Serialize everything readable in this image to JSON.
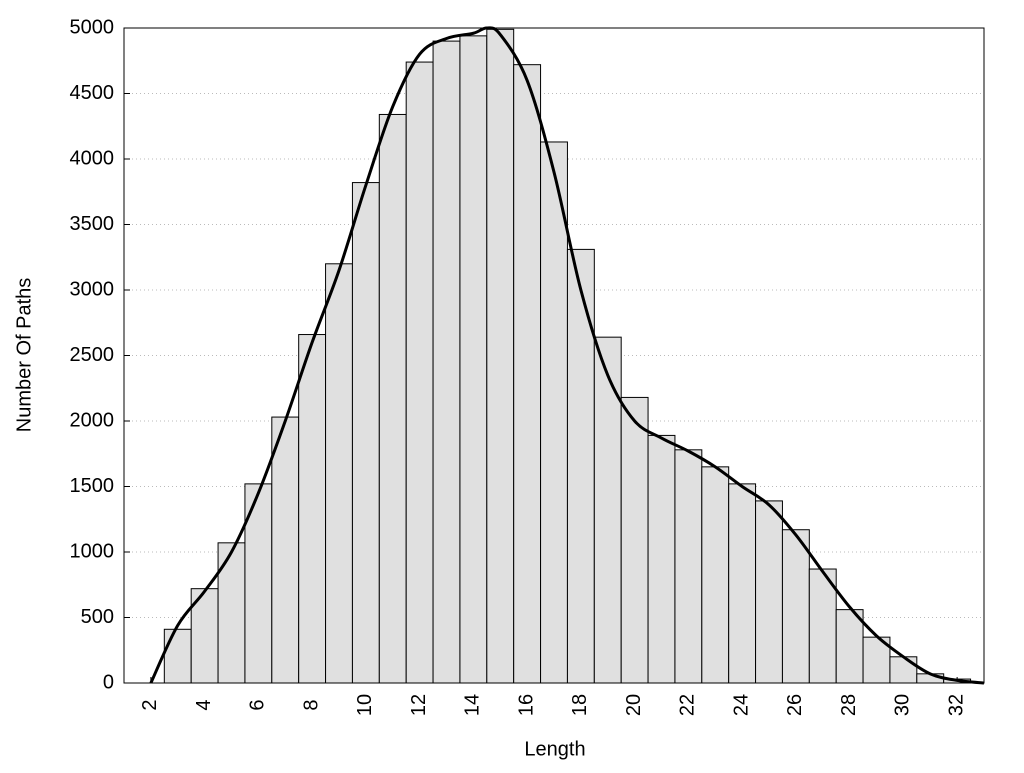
{
  "chart_data": {
    "type": "histogram",
    "xlabel": "Length",
    "ylabel": "Number Of Paths",
    "bins": [
      2.5,
      3.5,
      4.5,
      5.5,
      6.5,
      7.5,
      8.5,
      9.5,
      10.5,
      11.5,
      12.5,
      13.5,
      14.5,
      15.5,
      16.5,
      17.5,
      18.5,
      19.5,
      20.5,
      21.5,
      22.5,
      23.5,
      24.5,
      25.5,
      26.5,
      27.5,
      28.5,
      29.5,
      30.5,
      31.5,
      32.5
    ],
    "counts": [
      410,
      720,
      1070,
      1520,
      2030,
      2660,
      3200,
      3820,
      4340,
      4740,
      4900,
      4940,
      4990,
      4720,
      4130,
      3310,
      2640,
      2180,
      1890,
      1780,
      1650,
      1520,
      1390,
      1170,
      870,
      560,
      350,
      200,
      70,
      30
    ],
    "bar_color": "#e0e0e0",
    "curve": {
      "color": "#000000",
      "x": [
        2,
        3,
        4,
        5,
        6,
        7,
        8,
        9,
        10,
        11,
        12,
        13,
        14,
        14.5,
        15,
        16,
        17,
        18,
        19,
        20,
        21,
        22,
        23,
        24,
        25,
        26,
        27,
        28,
        29,
        30,
        31,
        32,
        33
      ],
      "values": [
        0,
        440,
        700,
        1000,
        1450,
        2000,
        2600,
        3150,
        3800,
        4400,
        4800,
        4920,
        4960,
        5000,
        4950,
        4600,
        3900,
        3000,
        2350,
        2000,
        1870,
        1770,
        1650,
        1500,
        1360,
        1130,
        850,
        580,
        360,
        200,
        70,
        20,
        0
      ]
    },
    "xlim": [
      1,
      33
    ],
    "ylim": [
      0,
      5000
    ],
    "xticks": [
      2,
      4,
      6,
      8,
      10,
      12,
      14,
      16,
      18,
      20,
      22,
      24,
      26,
      28,
      30,
      32
    ],
    "yticks": [
      0,
      500,
      1000,
      1500,
      2000,
      2500,
      3000,
      3500,
      4000,
      4500,
      5000
    ],
    "grid": true
  }
}
